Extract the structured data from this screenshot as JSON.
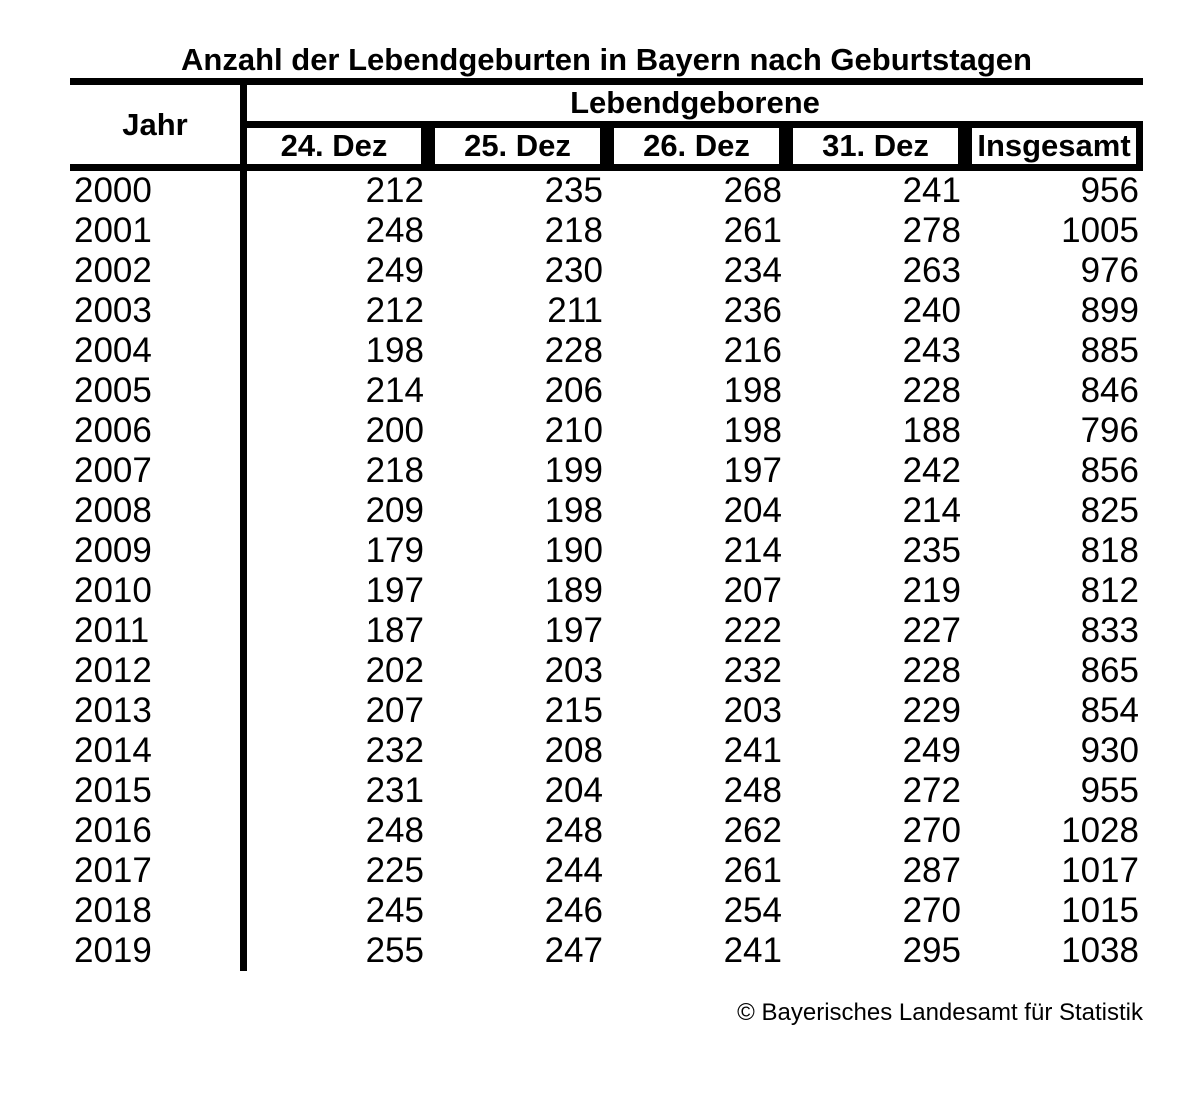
{
  "chart_data": {
    "type": "table",
    "title": "Anzahl der Lebendgeburten in Bayern nach Geburtstagen",
    "row_header": "Jahr",
    "group_header": "Lebendgeborene",
    "columns": [
      "24. Dez",
      "25. Dez",
      "26. Dez",
      "31. Dez",
      "Insgesamt"
    ],
    "rows": [
      [
        "2000",
        212,
        235,
        268,
        241,
        956
      ],
      [
        "2001",
        248,
        218,
        261,
        278,
        1005
      ],
      [
        "2002",
        249,
        230,
        234,
        263,
        976
      ],
      [
        "2003",
        212,
        211,
        236,
        240,
        899
      ],
      [
        "2004",
        198,
        228,
        216,
        243,
        885
      ],
      [
        "2005",
        214,
        206,
        198,
        228,
        846
      ],
      [
        "2006",
        200,
        210,
        198,
        188,
        796
      ],
      [
        "2007",
        218,
        199,
        197,
        242,
        856
      ],
      [
        "2008",
        209,
        198,
        204,
        214,
        825
      ],
      [
        "2009",
        179,
        190,
        214,
        235,
        818
      ],
      [
        "2010",
        197,
        189,
        207,
        219,
        812
      ],
      [
        "2011",
        187,
        197,
        222,
        227,
        833
      ],
      [
        "2012",
        202,
        203,
        232,
        228,
        865
      ],
      [
        "2013",
        207,
        215,
        203,
        229,
        854
      ],
      [
        "2014",
        232,
        208,
        241,
        249,
        930
      ],
      [
        "2015",
        231,
        204,
        248,
        272,
        955
      ],
      [
        "2016",
        248,
        248,
        262,
        270,
        1028
      ],
      [
        "2017",
        225,
        244,
        261,
        287,
        1017
      ],
      [
        "2018",
        245,
        246,
        254,
        270,
        1015
      ],
      [
        "2019",
        255,
        247,
        241,
        295,
        1038
      ]
    ],
    "source": "© Bayerisches Landesamt für Statistik",
    "layout": {
      "grid": "header rules only, no body gridlines except vertical rule after row header",
      "legend_position": "none"
    }
  },
  "colors": {
    "text": "#000000",
    "background": "#ffffff",
    "rule": "#000000"
  }
}
